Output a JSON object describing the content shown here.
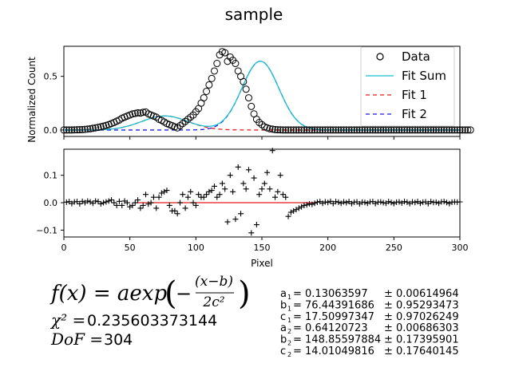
{
  "chart_data": [
    {
      "type": "scatter",
      "title": "sample",
      "xlabel": "",
      "ylabel": "Normalized Count",
      "xlim": [
        0,
        300
      ],
      "ylim": [
        -0.06,
        0.78
      ],
      "yticks": [
        0.0,
        0.5
      ],
      "ytick_labels": [
        "0.0",
        "0.5"
      ],
      "legend": {
        "placement": "top-right",
        "entries": [
          {
            "label": "Data",
            "color": "#000000",
            "marker": "o-open"
          },
          {
            "label": "Fit Sum",
            "color": "#17becf",
            "style": "solid"
          },
          {
            "label": "Fit 1",
            "color": "#e41a1c",
            "style": "dashed"
          },
          {
            "label": "Fit 2",
            "color": "#1a1ae4",
            "style": "dashed"
          }
        ]
      },
      "series": [
        {
          "name": "Data",
          "x_start": 0,
          "x_end": 300,
          "x_step": 2,
          "values": [
            0,
            0,
            0,
            0,
            0.001,
            0.002,
            0.003,
            0.004,
            0.006,
            0.009,
            0.012,
            0.016,
            0.02,
            0.025,
            0.03,
            0.036,
            0.043,
            0.05,
            0.06,
            0.07,
            0.082,
            0.093,
            0.11,
            0.12,
            0.13,
            0.14,
            0.15,
            0.155,
            0.16,
            0.158,
            0.165,
            0.168,
            0.15,
            0.14,
            0.13,
            0.12,
            0.1,
            0.09,
            0.075,
            0.06,
            0.05,
            0.04,
            0.03,
            0.02,
            0.04,
            0.06,
            0.08,
            0.1,
            0.12,
            0.14,
            0.17,
            0.2,
            0.25,
            0.3,
            0.36,
            0.42,
            0.48,
            0.55,
            0.62,
            0.7,
            0.73,
            0.72,
            0.64,
            0.68,
            0.65,
            0.62,
            0.55,
            0.5,
            0.45,
            0.38,
            0.3,
            0.22,
            0.15,
            0.1,
            0.07,
            0.05,
            0.03,
            0.02,
            0.012,
            0.008,
            0.004,
            0.002,
            0.001,
            0,
            0,
            0,
            0,
            0,
            0,
            0,
            0,
            0,
            0,
            0,
            0,
            0,
            0,
            0,
            0,
            0,
            0,
            0,
            0,
            0,
            0,
            0,
            0,
            0,
            0,
            0,
            0,
            0,
            0,
            0,
            0,
            0,
            0,
            0,
            0,
            0,
            0,
            0,
            0,
            0,
            0,
            0,
            0,
            0,
            0,
            0,
            0,
            0,
            0,
            0,
            0,
            0,
            0,
            0,
            0,
            0,
            0,
            0,
            0,
            0,
            0,
            0,
            0,
            0,
            0,
            0,
            0,
            0,
            0,
            0,
            0
          ]
        },
        {
          "name": "Fit Sum",
          "model": "sum"
        },
        {
          "name": "Fit 1",
          "params": {
            "a": 0.13063597,
            "b": 76.44391686,
            "c": 17.50997347
          }
        },
        {
          "name": "Fit 2",
          "params": {
            "a": 0.64120723,
            "b": 148.85597884,
            "c": 14.01049816
          }
        }
      ]
    },
    {
      "type": "scatter",
      "xlabel": "Pixel",
      "ylabel": "",
      "xlim": [
        0,
        300
      ],
      "ylim": [
        -0.125,
        0.195
      ],
      "xticks": [
        0,
        50,
        100,
        150,
        200,
        250,
        300
      ],
      "xtick_labels": [
        "0",
        "50",
        "100",
        "150",
        "200",
        "250",
        "300"
      ],
      "yticks": [
        -0.1,
        0.0,
        0.1
      ],
      "ytick_labels": [
        "−0.1",
        "0.0",
        "0.1"
      ],
      "grid": false,
      "residual_line_range": [
        55,
        190
      ],
      "series": [
        {
          "name": "Residuals",
          "color": "#000000",
          "marker": "+",
          "x": [
            2,
            4,
            6,
            8,
            10,
            12,
            14,
            16,
            18,
            20,
            22,
            24,
            26,
            28,
            30,
            32,
            34,
            36,
            38,
            40,
            42,
            44,
            46,
            48,
            50,
            52,
            54,
            56,
            58,
            60,
            62,
            64,
            66,
            68,
            70,
            72,
            74,
            76,
            78,
            80,
            82,
            84,
            86,
            88,
            90,
            92,
            94,
            96,
            98,
            100,
            102,
            104,
            106,
            108,
            110,
            112,
            114,
            116,
            118,
            120,
            122,
            124,
            126,
            128,
            130,
            132,
            134,
            136,
            138,
            140,
            142,
            144,
            146,
            148,
            150,
            152,
            154,
            156,
            158,
            160,
            162,
            164,
            166,
            168,
            170,
            172,
            174,
            176,
            178,
            180,
            182,
            184,
            186,
            188,
            190,
            192,
            194,
            196,
            198,
            200,
            202,
            204,
            206,
            208,
            210,
            212,
            214,
            216,
            218,
            220,
            222,
            224,
            226,
            228,
            230,
            232,
            234,
            236,
            238,
            240,
            242,
            244,
            246,
            248,
            250,
            252,
            254,
            256,
            258,
            260,
            262,
            264,
            266,
            268,
            270,
            272,
            274,
            276,
            278,
            280,
            282,
            284,
            286,
            288,
            290,
            292,
            294,
            296,
            298,
            300
          ],
          "values": [
            0.002,
            0.004,
            -0.003,
            0.003,
            0.004,
            -0.004,
            0.005,
            0.0,
            0.006,
            0.003,
            -0.002,
            0.006,
            0.004,
            -0.004,
            0.0,
            0.003,
            0.006,
            0.01,
            0.0,
            -0.01,
            0.005,
            -0.01,
            0.006,
            0.0,
            -0.015,
            -0.01,
            0.0,
            0.01,
            -0.02,
            -0.01,
            0.03,
            -0.005,
            0.0,
            0.02,
            -0.02,
            0.02,
            0.035,
            0.04,
            0.045,
            -0.01,
            -0.03,
            -0.03,
            -0.04,
            0.0,
            0.03,
            -0.02,
            0.02,
            0.04,
            0.0,
            -0.01,
            0.03,
            0.02,
            0.02,
            0.03,
            0.04,
            0.045,
            0.06,
            0.02,
            0.03,
            0.07,
            0.05,
            -0.07,
            0.1,
            0.04,
            -0.06,
            0.13,
            -0.04,
            0.07,
            0.05,
            0.12,
            -0.11,
            0.09,
            -0.08,
            0.03,
            0.05,
            0.07,
            0.11,
            0.05,
            0.19,
            0.02,
            0.04,
            0.1,
            0.03,
            0.02,
            -0.05,
            -0.035,
            -0.03,
            -0.025,
            -0.02,
            -0.015,
            -0.01,
            -0.008,
            -0.004,
            -0.006,
            -0.002,
            0.002,
            0.004,
            -0.002,
            0.003,
            0.001,
            0.005,
            -0.003,
            0.004,
            0.002,
            -0.002,
            0.003,
            0.0,
            0.004,
            -0.003,
            0.002,
            0.003,
            -0.004,
            0.002,
            0.001,
            -0.002,
            0.003,
            0.004,
            -0.003,
            0.002,
            0.003,
            0.0,
            -0.002,
            0.004,
            0.001,
            -0.003,
            0.002,
            0.003,
            -0.001,
            0.004,
            0.002,
            -0.003,
            0.003,
            0.001,
            0.004,
            -0.002,
            0.002,
            0.003,
            -0.003,
            0.004,
            0.001,
            0.002,
            -0.002,
            0.003,
            0.004,
            0.001,
            -0.003,
            0.002,
            0.003,
            0.002,
            0.003
          ]
        }
      ]
    }
  ],
  "fit": {
    "formula_lhs": "f(x) = aexp",
    "formula_num": "(x−b)",
    "formula_den": "2c²",
    "chi2_label": "χ² = ",
    "chi2_value": "0.235603373144",
    "dof_label": "DoF = ",
    "dof_value": "304",
    "params": [
      {
        "name": "a",
        "sub": "1",
        "value": "0.13063597",
        "err": "± 0.00614964"
      },
      {
        "name": "b",
        "sub": "1",
        "value": "76.44391686",
        "err": "± 0.95293473"
      },
      {
        "name": "c",
        "sub": "1",
        "value": "17.50997347",
        "err": "± 0.97026249"
      },
      {
        "name": "a",
        "sub": "2",
        "value": "0.64120723",
        "err": "± 0.00686303"
      },
      {
        "name": "b",
        "sub": "2",
        "value": "148.85597884",
        "err": "± 0.17395901"
      },
      {
        "name": "c",
        "sub": "2",
        "value": "14.01049816",
        "err": "± 0.17640145"
      }
    ]
  }
}
